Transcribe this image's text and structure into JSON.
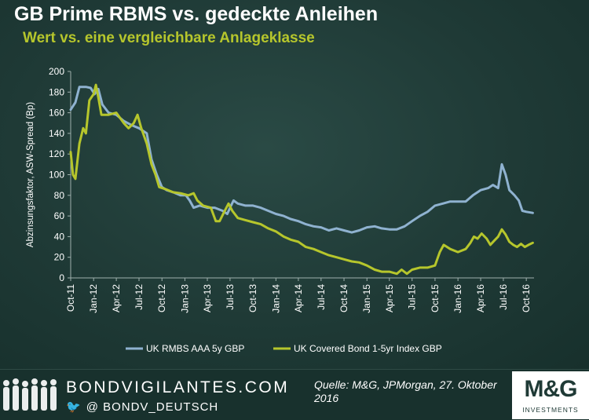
{
  "title": "GB Prime RBMS vs. gedeckte Anleihen",
  "subtitle": "Wert vs. eine vergleichbare Anlageklasse",
  "footer": {
    "brand": "BONDVIGILANTES.COM",
    "twitter": "@ BONDV_DEUTSCH",
    "source": "Quelle: M&G, JPMorgan, 27. Oktober 2016",
    "logo_text": "M&G",
    "logo_sub": "INVESTMENTS"
  },
  "colors": {
    "background": "#1f3a36",
    "rmbs": "#8fb2d0",
    "covered": "#b6c62c",
    "accent_title": "#b6c62c"
  },
  "chart_data": {
    "type": "line",
    "ylabel": "Abzinsungsfaktor, ASW-Spread (Bp)",
    "xlabel": "",
    "ylim": [
      0,
      200
    ],
    "yticks": [
      0,
      20,
      40,
      60,
      80,
      100,
      120,
      140,
      160,
      180,
      200
    ],
    "xlim": [
      "2011-10",
      "2016-11"
    ],
    "xticks": [
      "Oct-11",
      "Jan-12",
      "Apr-12",
      "Jul-12",
      "Oct-12",
      "Jan-13",
      "Apr-13",
      "Jul-13",
      "Oct-13",
      "Jan-14",
      "Apr-14",
      "Jul-14",
      "Oct-14",
      "Jan-15",
      "Apr-15",
      "Jul-15",
      "Oct-15",
      "Jan-16",
      "Apr-16",
      "Jul-16",
      "Oct-16"
    ],
    "grid": false,
    "legend": "bottom",
    "series": [
      {
        "name": "UK RMBS AAA 5y GBP",
        "color": "#8fb2d0",
        "points": [
          [
            "2011-10-01",
            163
          ],
          [
            "2011-10-20",
            170
          ],
          [
            "2011-11-05",
            185
          ],
          [
            "2011-12-01",
            185
          ],
          [
            "2011-12-20",
            184
          ],
          [
            "2012-01-05",
            178
          ],
          [
            "2012-01-20",
            183
          ],
          [
            "2012-02-05",
            168
          ],
          [
            "2012-03-01",
            160
          ],
          [
            "2012-04-01",
            158
          ],
          [
            "2012-05-01",
            152
          ],
          [
            "2012-06-01",
            148
          ],
          [
            "2012-07-01",
            145
          ],
          [
            "2012-08-01",
            140
          ],
          [
            "2012-08-20",
            115
          ],
          [
            "2012-09-10",
            100
          ],
          [
            "2012-10-01",
            88
          ],
          [
            "2012-10-20",
            85
          ],
          [
            "2012-11-15",
            83
          ],
          [
            "2012-12-15",
            80
          ],
          [
            "2013-01-05",
            80
          ],
          [
            "2013-01-20",
            75
          ],
          [
            "2013-02-05",
            68
          ],
          [
            "2013-03-01",
            70
          ],
          [
            "2013-04-01",
            68
          ],
          [
            "2013-05-01",
            68
          ],
          [
            "2013-06-01",
            65
          ],
          [
            "2013-06-20",
            62
          ],
          [
            "2013-07-05",
            70
          ],
          [
            "2013-07-15",
            75
          ],
          [
            "2013-08-01",
            72
          ],
          [
            "2013-09-01",
            70
          ],
          [
            "2013-10-01",
            70
          ],
          [
            "2013-11-01",
            68
          ],
          [
            "2013-12-01",
            65
          ],
          [
            "2014-01-01",
            62
          ],
          [
            "2014-02-01",
            60
          ],
          [
            "2014-03-01",
            57
          ],
          [
            "2014-04-01",
            55
          ],
          [
            "2014-05-01",
            52
          ],
          [
            "2014-06-01",
            50
          ],
          [
            "2014-07-01",
            49
          ],
          [
            "2014-08-01",
            46
          ],
          [
            "2014-09-01",
            48
          ],
          [
            "2014-10-01",
            46
          ],
          [
            "2014-11-01",
            44
          ],
          [
            "2014-12-01",
            46
          ],
          [
            "2015-01-01",
            49
          ],
          [
            "2015-02-01",
            50
          ],
          [
            "2015-03-01",
            48
          ],
          [
            "2015-04-01",
            47
          ],
          [
            "2015-05-01",
            47
          ],
          [
            "2015-06-01",
            50
          ],
          [
            "2015-07-01",
            55
          ],
          [
            "2015-08-01",
            60
          ],
          [
            "2015-09-01",
            64
          ],
          [
            "2015-10-01",
            70
          ],
          [
            "2015-11-01",
            72
          ],
          [
            "2015-12-01",
            74
          ],
          [
            "2016-01-01",
            74
          ],
          [
            "2016-02-01",
            74
          ],
          [
            "2016-03-01",
            80
          ],
          [
            "2016-04-01",
            85
          ],
          [
            "2016-05-01",
            87
          ],
          [
            "2016-05-20",
            90
          ],
          [
            "2016-06-10",
            87
          ],
          [
            "2016-06-25",
            110
          ],
          [
            "2016-07-10",
            100
          ],
          [
            "2016-07-25",
            85
          ],
          [
            "2016-08-15",
            80
          ],
          [
            "2016-09-01",
            75
          ],
          [
            "2016-09-15",
            65
          ],
          [
            "2016-10-01",
            64
          ],
          [
            "2016-10-27",
            63
          ]
        ]
      },
      {
        "name": "UK Covered Bond 1-5yr Index GBP",
        "color": "#b6c62c",
        "points": [
          [
            "2011-10-01",
            122
          ],
          [
            "2011-10-10",
            100
          ],
          [
            "2011-10-20",
            96
          ],
          [
            "2011-11-05",
            130
          ],
          [
            "2011-11-20",
            145
          ],
          [
            "2011-12-01",
            140
          ],
          [
            "2011-12-15",
            172
          ],
          [
            "2012-01-01",
            178
          ],
          [
            "2012-01-10",
            187
          ],
          [
            "2012-01-20",
            175
          ],
          [
            "2012-02-01",
            158
          ],
          [
            "2012-03-01",
            158
          ],
          [
            "2012-04-01",
            160
          ],
          [
            "2012-05-01",
            150
          ],
          [
            "2012-05-20",
            145
          ],
          [
            "2012-06-10",
            150
          ],
          [
            "2012-06-25",
            158
          ],
          [
            "2012-07-10",
            145
          ],
          [
            "2012-08-01",
            130
          ],
          [
            "2012-08-20",
            110
          ],
          [
            "2012-09-05",
            100
          ],
          [
            "2012-09-20",
            88
          ],
          [
            "2012-10-15",
            86
          ],
          [
            "2012-11-15",
            83
          ],
          [
            "2012-12-15",
            82
          ],
          [
            "2013-01-15",
            80
          ],
          [
            "2013-02-05",
            82
          ],
          [
            "2013-02-20",
            75
          ],
          [
            "2013-03-15",
            70
          ],
          [
            "2013-04-15",
            68
          ],
          [
            "2013-05-05",
            55
          ],
          [
            "2013-05-20",
            55
          ],
          [
            "2013-06-10",
            65
          ],
          [
            "2013-06-25",
            72
          ],
          [
            "2013-07-10",
            65
          ],
          [
            "2013-08-01",
            58
          ],
          [
            "2013-09-01",
            56
          ],
          [
            "2013-10-01",
            54
          ],
          [
            "2013-11-01",
            52
          ],
          [
            "2013-12-01",
            48
          ],
          [
            "2014-01-01",
            45
          ],
          [
            "2014-02-01",
            40
          ],
          [
            "2014-03-01",
            37
          ],
          [
            "2014-04-01",
            35
          ],
          [
            "2014-05-01",
            30
          ],
          [
            "2014-06-01",
            28
          ],
          [
            "2014-07-01",
            25
          ],
          [
            "2014-08-01",
            22
          ],
          [
            "2014-09-01",
            20
          ],
          [
            "2014-10-01",
            18
          ],
          [
            "2014-11-01",
            16
          ],
          [
            "2014-12-01",
            15
          ],
          [
            "2015-01-01",
            12
          ],
          [
            "2015-02-01",
            8
          ],
          [
            "2015-03-01",
            6
          ],
          [
            "2015-04-01",
            6
          ],
          [
            "2015-05-01",
            4
          ],
          [
            "2015-05-20",
            8
          ],
          [
            "2015-06-10",
            4
          ],
          [
            "2015-07-01",
            8
          ],
          [
            "2015-08-01",
            10
          ],
          [
            "2015-09-01",
            10
          ],
          [
            "2015-10-01",
            12
          ],
          [
            "2015-10-20",
            25
          ],
          [
            "2015-11-05",
            32
          ],
          [
            "2015-12-01",
            28
          ],
          [
            "2016-01-01",
            25
          ],
          [
            "2016-02-01",
            28
          ],
          [
            "2016-02-20",
            34
          ],
          [
            "2016-03-05",
            40
          ],
          [
            "2016-03-20",
            38
          ],
          [
            "2016-04-05",
            43
          ],
          [
            "2016-04-25",
            38
          ],
          [
            "2016-05-10",
            32
          ],
          [
            "2016-05-25",
            36
          ],
          [
            "2016-06-10",
            40
          ],
          [
            "2016-06-25",
            47
          ],
          [
            "2016-07-10",
            42
          ],
          [
            "2016-07-25",
            35
          ],
          [
            "2016-08-10",
            32
          ],
          [
            "2016-08-25",
            30
          ],
          [
            "2016-09-10",
            33
          ],
          [
            "2016-09-25",
            30
          ],
          [
            "2016-10-10",
            32
          ],
          [
            "2016-10-27",
            34
          ]
        ]
      }
    ]
  }
}
